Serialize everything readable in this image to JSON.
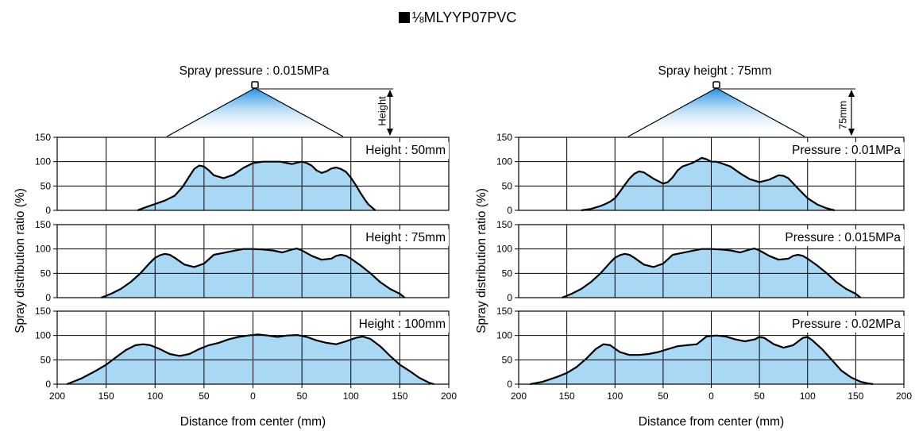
{
  "title": "⅛MLYYP07PVC",
  "chart_data": [
    {
      "type": "area",
      "header": "Spray pressure : 0.015MPa",
      "diagram_label": "Height",
      "xlabel": "Distance from center (mm)",
      "ylabel": "Spray distribution ratio (%)",
      "xlim": [
        -200,
        200
      ],
      "ylim": [
        0,
        150
      ],
      "x_ticks": [
        "200",
        "150",
        "100",
        "50",
        "0",
        "50",
        "100",
        "150",
        "200"
      ],
      "y_ticks": [
        "0",
        "50",
        "100",
        "150"
      ],
      "fill_color": "#a8d8f4",
      "line_color": "#000000",
      "panels": [
        {
          "label": "Height : 50mm",
          "x": [
            -118,
            -110,
            -100,
            -90,
            -80,
            -72,
            -65,
            -60,
            -55,
            -50,
            -45,
            -40,
            -30,
            -20,
            -10,
            0,
            10,
            20,
            28,
            35,
            40,
            45,
            50,
            55,
            60,
            65,
            70,
            75,
            80,
            85,
            90,
            95,
            100,
            105,
            110,
            115,
            118,
            122,
            125
          ],
          "y": [
            0,
            6,
            13,
            20,
            30,
            48,
            70,
            85,
            92,
            90,
            82,
            72,
            66,
            73,
            87,
            97,
            100,
            100,
            100,
            97,
            95,
            98,
            100,
            97,
            92,
            82,
            77,
            80,
            86,
            88,
            85,
            79,
            67,
            52,
            35,
            20,
            12,
            5,
            0
          ]
        },
        {
          "label": "Height : 75mm",
          "x": [
            -155,
            -145,
            -135,
            -125,
            -115,
            -105,
            -100,
            -95,
            -90,
            -85,
            -80,
            -70,
            -60,
            -50,
            -40,
            -30,
            -20,
            -10,
            0,
            10,
            20,
            30,
            40,
            45,
            50,
            60,
            70,
            80,
            85,
            90,
            95,
            100,
            110,
            120,
            130,
            140,
            150,
            155
          ],
          "y": [
            0,
            8,
            18,
            32,
            50,
            72,
            82,
            87,
            90,
            88,
            82,
            68,
            63,
            70,
            88,
            92,
            96,
            100,
            100,
            99,
            97,
            93,
            99,
            101,
            97,
            86,
            78,
            80,
            86,
            88,
            86,
            80,
            66,
            50,
            32,
            18,
            8,
            0
          ]
        },
        {
          "label": "Height : 100mm",
          "x": [
            -190,
            -175,
            -160,
            -150,
            -140,
            -130,
            -120,
            -112,
            -105,
            -95,
            -85,
            -75,
            -65,
            -55,
            -45,
            -35,
            -25,
            -15,
            -5,
            5,
            15,
            25,
            35,
            45,
            55,
            65,
            75,
            85,
            95,
            105,
            112,
            120,
            130,
            140,
            150,
            160,
            170,
            180,
            185
          ],
          "y": [
            0,
            12,
            28,
            40,
            55,
            70,
            80,
            82,
            80,
            72,
            62,
            58,
            62,
            72,
            80,
            85,
            92,
            97,
            100,
            102,
            100,
            97,
            100,
            101,
            97,
            90,
            85,
            82,
            88,
            95,
            98,
            93,
            78,
            58,
            40,
            27,
            13,
            3,
            0
          ]
        }
      ]
    },
    {
      "type": "area",
      "header": "Spray height : 75mm",
      "diagram_label": "75mm",
      "xlabel": "Distance from center (mm)",
      "ylabel": "Spray distribution ratio (%)",
      "xlim": [
        -200,
        200
      ],
      "ylim": [
        0,
        150
      ],
      "x_ticks": [
        "200",
        "150",
        "100",
        "50",
        "0",
        "50",
        "100",
        "150",
        "200"
      ],
      "y_ticks": [
        "0",
        "50",
        "100",
        "150"
      ],
      "fill_color": "#a8d8f4",
      "line_color": "#000000",
      "panels": [
        {
          "label": "Pressure : 0.01MPa",
          "x": [
            -135,
            -125,
            -115,
            -110,
            -105,
            -100,
            -95,
            -90,
            -85,
            -80,
            -75,
            -70,
            -60,
            -50,
            -45,
            -40,
            -35,
            -30,
            -20,
            -15,
            -10,
            -5,
            0,
            5,
            10,
            20,
            30,
            40,
            50,
            60,
            70,
            75,
            80,
            90,
            100,
            110,
            120,
            128
          ],
          "y": [
            0,
            3,
            9,
            13,
            18,
            25,
            38,
            52,
            65,
            75,
            80,
            78,
            65,
            55,
            58,
            68,
            82,
            90,
            97,
            102,
            108,
            105,
            100,
            100,
            97,
            90,
            76,
            64,
            58,
            63,
            72,
            71,
            66,
            45,
            25,
            12,
            4,
            0
          ]
        },
        {
          "label": "Pressure : 0.015MPa",
          "x": [
            -155,
            -145,
            -135,
            -125,
            -115,
            -105,
            -100,
            -95,
            -90,
            -85,
            -80,
            -70,
            -60,
            -50,
            -40,
            -30,
            -20,
            -10,
            0,
            10,
            20,
            30,
            40,
            45,
            50,
            60,
            70,
            80,
            85,
            90,
            95,
            100,
            110,
            120,
            130,
            140,
            150,
            155
          ],
          "y": [
            0,
            8,
            18,
            32,
            50,
            72,
            82,
            87,
            90,
            88,
            82,
            68,
            63,
            70,
            88,
            92,
            96,
            100,
            100,
            99,
            97,
            93,
            99,
            101,
            97,
            86,
            78,
            80,
            86,
            88,
            86,
            80,
            66,
            50,
            32,
            18,
            8,
            0
          ]
        },
        {
          "label": "Pressure : 0.02MPa",
          "x": [
            -188,
            -175,
            -160,
            -150,
            -140,
            -130,
            -120,
            -112,
            -105,
            -95,
            -85,
            -75,
            -65,
            -55,
            -45,
            -35,
            -25,
            -15,
            -10,
            -5,
            5,
            15,
            25,
            35,
            45,
            50,
            55,
            65,
            75,
            85,
            95,
            100,
            105,
            115,
            125,
            135,
            145,
            155,
            162,
            168
          ],
          "y": [
            0,
            5,
            15,
            23,
            35,
            52,
            72,
            82,
            80,
            66,
            60,
            60,
            62,
            66,
            72,
            78,
            80,
            82,
            90,
            98,
            100,
            98,
            92,
            88,
            92,
            97,
            95,
            82,
            75,
            80,
            95,
            97,
            90,
            72,
            50,
            28,
            14,
            5,
            2,
            0
          ]
        }
      ]
    }
  ]
}
